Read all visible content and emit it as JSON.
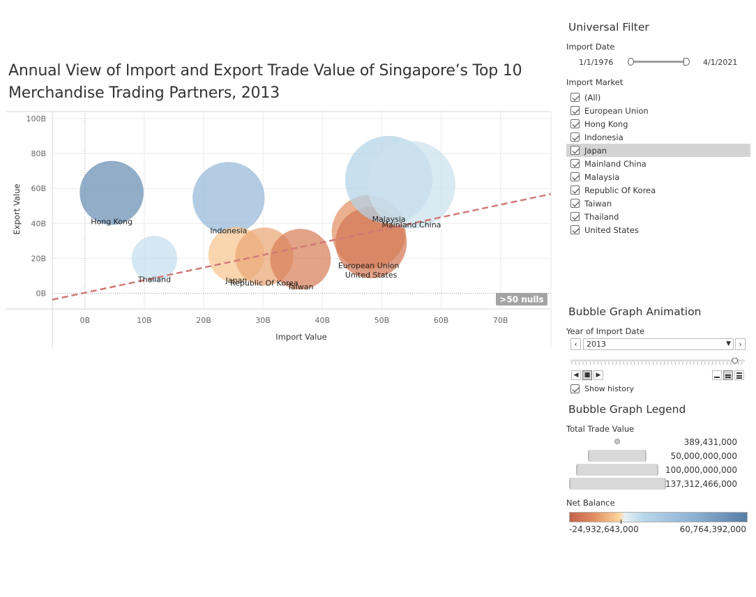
{
  "title": "Annual View of Import and Export Trade Value of Singapore’s Top 10 Merchandise Trading Partners, 2013",
  "colors": {
    "diverging": [
      "#c3614a",
      "#e08c60",
      "#fdd39a",
      "#eaf1f4",
      "#b9d8ea",
      "#8fb2d4",
      "#567ea3"
    ],
    "trend_line": "#d07a78",
    "null_badge": "#a3a3a3"
  },
  "nulls_badge": ">50 nulls",
  "chart_data": {
    "type": "scatter",
    "subtype": "bubble",
    "title": "Annual View of Import and Export Trade Value of Singapore’s Top 10 Merchandise Trading Partners, 2013",
    "xlabel": "Import Value",
    "ylabel": "Export Value",
    "xlim": [
      -5.5,
      78.5
    ],
    "ylim": [
      -9,
      104
    ],
    "x_ticks": [
      "0B",
      "10B",
      "20B",
      "30B",
      "40B",
      "50B",
      "60B",
      "70B"
    ],
    "x_tick_values": [
      0,
      10,
      20,
      30,
      40,
      50,
      60,
      70
    ],
    "y_ticks": [
      "0B",
      "20B",
      "40B",
      "60B",
      "80B",
      "100B"
    ],
    "y_tick_values": [
      0,
      20,
      40,
      60,
      80,
      100
    ],
    "unit": "B",
    "grid": true,
    "trend_line": {
      "slope": 0.72,
      "intercept": 0.3
    },
    "points": [
      {
        "name": "Hong Kong",
        "x": 4.5,
        "y": 57.5,
        "total": 62.0,
        "net_balance": 53.0,
        "label_offset": [
          0,
          22
        ]
      },
      {
        "name": "Thailand",
        "x": 11.7,
        "y": 19.8,
        "total": 31.5,
        "net_balance": 8.1,
        "label_offset": [
          0,
          22
        ]
      },
      {
        "name": "Indonesia",
        "x": 24.2,
        "y": 54.5,
        "total": 78.7,
        "net_balance": 30.3,
        "label_offset": [
          0,
          22
        ]
      },
      {
        "name": "Japan",
        "x": 25.5,
        "y": 22.0,
        "total": 47.5,
        "net_balance": -3.5,
        "label_offset": [
          0,
          22
        ]
      },
      {
        "name": "Republic Of Korea",
        "x": 30.2,
        "y": 21.0,
        "total": 51.2,
        "net_balance": -9.2,
        "label_offset": [
          0,
          22
        ]
      },
      {
        "name": "Taiwan",
        "x": 36.3,
        "y": 19.5,
        "total": 55.8,
        "net_balance": -16.8,
        "label_offset": [
          0,
          22
        ]
      },
      {
        "name": "European Union",
        "x": 47.8,
        "y": 35.0,
        "total": 82.8,
        "net_balance": -12.8,
        "label_offset": [
          0,
          22
        ]
      },
      {
        "name": "United States",
        "x": 48.2,
        "y": 29.0,
        "total": 77.2,
        "net_balance": -19.2,
        "label_offset": [
          0,
          22
        ]
      },
      {
        "name": "Malaysia",
        "x": 51.2,
        "y": 65.0,
        "total": 116.2,
        "net_balance": 13.8,
        "label_offset": [
          0,
          22
        ]
      },
      {
        "name": "Mainland China",
        "x": 55.0,
        "y": 62.0,
        "total": 117.0,
        "net_balance": 7.0,
        "label_offset": [
          0,
          22
        ]
      }
    ]
  },
  "universal_filter": {
    "title": "Universal Filter",
    "import_date_label": "Import Date",
    "date_start": "1/1/1976",
    "date_end": "4/1/2021",
    "import_market_label": "Import Market",
    "markets": [
      "(All)",
      "European Union",
      "Hong Kong",
      "Indonesia",
      "Japan",
      "Mainland China",
      "Malaysia",
      "Republic Of Korea",
      "Taiwan",
      "Thailand",
      "United States"
    ],
    "highlighted": "Japan"
  },
  "animation": {
    "title": "Bubble Graph Animation",
    "year_label": "Year of Import Date",
    "year_value": "2013",
    "year_position": 0.95,
    "show_history_label": "Show history",
    "prev_symbol": "‹",
    "next_symbol": "›",
    "caret_symbol": "▼",
    "back_symbol": "◀",
    "stop_symbol": "■",
    "play_symbol": "▶"
  },
  "legend": {
    "title": "Bubble Graph Legend",
    "size_label": "Total Trade Value",
    "size_values": [
      "389,431,000",
      "50,000,000,000",
      "100,000,000,000",
      "137,312,466,000"
    ],
    "net_balance_label": "Net Balance",
    "net_min": "-24,932,643,000",
    "net_max": "60,764,392,000",
    "net_min_value": -24.93,
    "net_max_value": 60.76
  }
}
